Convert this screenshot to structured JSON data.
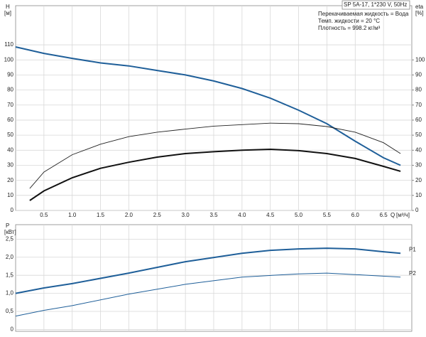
{
  "chart_data": [
    {
      "type": "line",
      "y_label": "H",
      "y_unit": "[м]",
      "y2_label": "eta",
      "y2_unit": "[%]",
      "x_label": "Q",
      "x_unit": "[м³/ч]",
      "title": "SP 5A-17, 1*230 V, 50Hz",
      "annotations": [
        "Перекачиваемая жидкость = Вода",
        "Темп. жидкости = 20 °C",
        "Плотность = 998.2 кг/м³"
      ],
      "xlim": [
        0,
        7
      ],
      "ylim": [
        0,
        136
      ],
      "y2lim": [
        0,
        136
      ],
      "grid": true,
      "show_xtick_labels": true,
      "xticks": [
        {
          "value": 0.5,
          "label": "0.5"
        },
        {
          "value": 1,
          "label": "1.0"
        },
        {
          "value": 1.5,
          "label": "1.5"
        },
        {
          "value": 2,
          "label": "2.0"
        },
        {
          "value": 2.5,
          "label": "2.5"
        },
        {
          "value": 3,
          "label": "3.0"
        },
        {
          "value": 3.5,
          "label": "3.5"
        },
        {
          "value": 4,
          "label": "4.0"
        },
        {
          "value": 4.5,
          "label": "4.5"
        },
        {
          "value": 5,
          "label": "5.0"
        },
        {
          "value": 5.5,
          "label": "5.5"
        },
        {
          "value": 6,
          "label": "6.0"
        },
        {
          "value": 6.5,
          "label": "6.5"
        }
      ],
      "yticks": [
        0,
        10,
        20,
        30,
        40,
        50,
        60,
        70,
        80,
        90,
        100,
        110
      ],
      "y2ticks": [
        0,
        10,
        20,
        30,
        40,
        50,
        60,
        70,
        80,
        90,
        100
      ],
      "series": [
        {
          "color": "#1f5f99",
          "width": 2,
          "x": [
            0,
            0.5,
            1,
            1.5,
            2,
            2.5,
            3,
            3.5,
            4,
            4.5,
            5,
            5.5,
            6,
            6.5,
            6.8
          ],
          "values": [
            108.6,
            104.3,
            101,
            98,
            96,
            93,
            90,
            86,
            81,
            74.6,
            66.6,
            57.6,
            46,
            35,
            30
          ]
        },
        {
          "color": "#222222",
          "width": 0.9,
          "axis": "y2",
          "x": [
            0.25,
            0.5,
            1,
            1.5,
            2,
            2.5,
            3,
            3.5,
            4,
            4.5,
            5,
            5.5,
            6,
            6.5,
            6.8
          ],
          "values": [
            14.6,
            25.5,
            37,
            44,
            49,
            52,
            54,
            56,
            57,
            58,
            57.6,
            55.7,
            52,
            45,
            37.8
          ]
        },
        {
          "color": "#111111",
          "width": 2,
          "axis": "y2",
          "x": [
            0.25,
            0.5,
            1,
            1.5,
            2,
            2.5,
            3,
            3.5,
            4,
            4.5,
            5,
            5.5,
            6,
            6.5,
            6.8
          ],
          "values": [
            6.6,
            13,
            21.7,
            28,
            32,
            35.4,
            37.8,
            39,
            40,
            40.6,
            39.7,
            37.8,
            34.5,
            29.3,
            26
          ]
        }
      ]
    },
    {
      "type": "line",
      "y_label": "P",
      "y_unit": "[кВт]",
      "xlim": [
        0,
        7
      ],
      "ylim": [
        -0.05,
        2.9
      ],
      "grid": true,
      "show_xtick_labels": false,
      "xticks": [
        0.5,
        1,
        1.5,
        2,
        2.5,
        3,
        3.5,
        4,
        4.5,
        5,
        5.5,
        6,
        6.5
      ],
      "yticks": [
        0,
        {
          "value": 0.5,
          "label": "0,5"
        },
        {
          "value": 1,
          "label": "1,0"
        },
        {
          "value": 1.5,
          "label": "1,5"
        },
        {
          "value": 2,
          "label": "2,0"
        },
        {
          "value": 2.5,
          "label": "2,5"
        }
      ],
      "series": [
        {
          "name": "P1",
          "color": "#1f5f99",
          "width": 2,
          "x": [
            0,
            0.5,
            1,
            2,
            3,
            4,
            4.5,
            5,
            5.5,
            6,
            6.5,
            6.8
          ],
          "values": [
            1.0,
            1.15,
            1.27,
            1.56,
            1.875,
            2.11,
            2.19,
            2.23,
            2.25,
            2.23,
            2.15,
            2.11
          ]
        },
        {
          "name": "P2",
          "color": "#1f5f99",
          "width": 1,
          "x": [
            0,
            0.5,
            1,
            2,
            3,
            4,
            5,
            5.5,
            6,
            6.8
          ],
          "values": [
            0.37,
            0.53,
            0.66,
            0.98,
            1.25,
            1.45,
            1.54,
            1.56,
            1.52,
            1.45
          ]
        }
      ]
    }
  ]
}
